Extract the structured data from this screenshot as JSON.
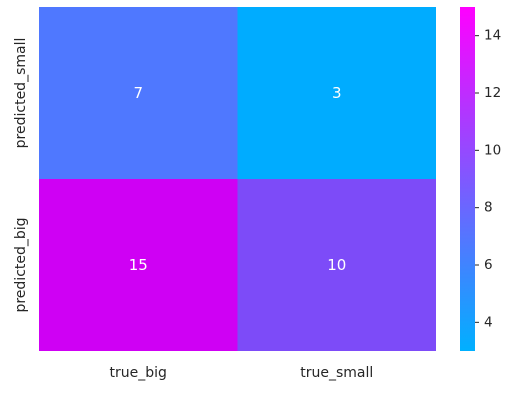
{
  "chart_data": {
    "type": "heatmap",
    "title": "",
    "xlabel": "",
    "ylabel": "",
    "x_categories": [
      "true_big",
      "true_small"
    ],
    "y_categories": [
      "predicted_small",
      "predicted_big"
    ],
    "values": [
      [
        7,
        3
      ],
      [
        15,
        10
      ]
    ],
    "annotations": true,
    "colorbar": {
      "range": [
        3,
        15
      ],
      "ticks": [
        "4",
        "6",
        "8",
        "10",
        "12",
        "14"
      ],
      "colors": [
        "#00b0ff",
        "#ff00ff"
      ]
    },
    "cell_colors": [
      [
        "#4f78ff",
        "#00acff"
      ],
      [
        "#cf00f4",
        "#7d4bf8"
      ]
    ]
  }
}
